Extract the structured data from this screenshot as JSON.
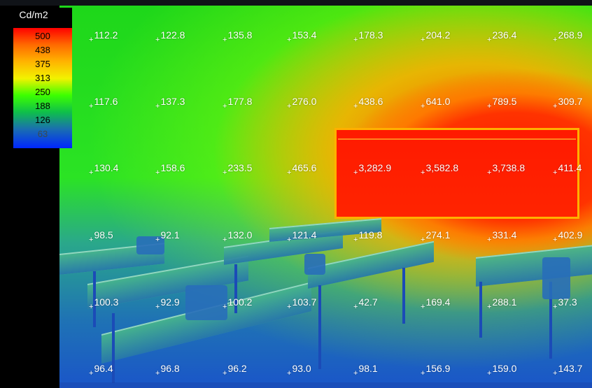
{
  "legend": {
    "unit": "Cd/m2",
    "ticks": [
      "500",
      "438",
      "375",
      "313",
      "250",
      "188",
      "126",
      "63"
    ],
    "tick_colors": [
      "#000000",
      "#000000",
      "#000000",
      "#000000",
      "#000000",
      "#000000",
      "#000000",
      "#3a4a4f"
    ]
  },
  "grid": {
    "rows": [
      [
        "112.2",
        "122.8",
        "135.8",
        "153.4",
        "178.3",
        "204.2",
        "236.4",
        "268.9"
      ],
      [
        "117.6",
        "137.3",
        "177.8",
        "276.0",
        "438.6",
        "641.0",
        "789.5",
        "309.7"
      ],
      [
        "130.4",
        "158.6",
        "233.5",
        "465.6",
        "3,282.9",
        "3,582.8",
        "3,738.8",
        "411.4"
      ],
      [
        "98.5",
        "92.1",
        "132.0",
        "121.4",
        "119.8",
        "274.1",
        "331.4",
        "402.9"
      ],
      [
        "100.3",
        "92.9",
        "100.2",
        "103.7",
        "42.7",
        "169.4",
        "288.1",
        "37.3"
      ],
      [
        "96.4",
        "96.8",
        "96.2",
        "93.0",
        "98.1",
        "156.9",
        "159.0",
        "143.7"
      ]
    ]
  }
}
